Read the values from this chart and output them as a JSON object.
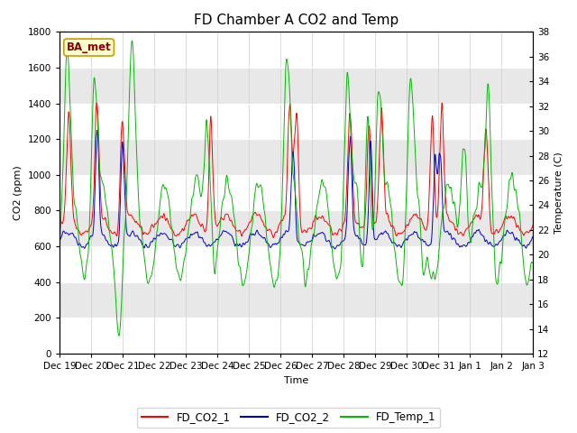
{
  "title": "FD Chamber A CO2 and Temp",
  "xlabel": "Time",
  "ylabel_left": "CO2 (ppm)",
  "ylabel_right": "Temperature (C)",
  "annotation": "BA_met",
  "ylim_left": [
    0,
    1800
  ],
  "ylim_right": [
    12,
    38
  ],
  "yticks_left": [
    0,
    200,
    400,
    600,
    800,
    1000,
    1200,
    1400,
    1600,
    1800
  ],
  "yticks_right": [
    12,
    14,
    16,
    18,
    20,
    22,
    24,
    26,
    28,
    30,
    32,
    34,
    36,
    38
  ],
  "xtick_labels": [
    "Dec 19",
    "Dec 20",
    "Dec 21",
    "Dec 22",
    "Dec 23",
    "Dec 24",
    "Dec 25",
    "Dec 26",
    "Dec 27",
    "Dec 28",
    "Dec 29",
    "Dec 30",
    "Dec 31",
    "Jan 1",
    "Jan 2",
    "Jan 3"
  ],
  "color_co2_1": "#ff0000",
  "color_co2_2": "#0000cc",
  "color_temp": "#00bb00",
  "legend_labels": [
    "FD_CO2_1",
    "FD_CO2_2",
    "FD_Temp_1"
  ],
  "background_color": "#ffffff",
  "plot_bg_color": "#ffffff",
  "title_fontsize": 11,
  "axis_fontsize": 8,
  "tick_fontsize": 7.5
}
